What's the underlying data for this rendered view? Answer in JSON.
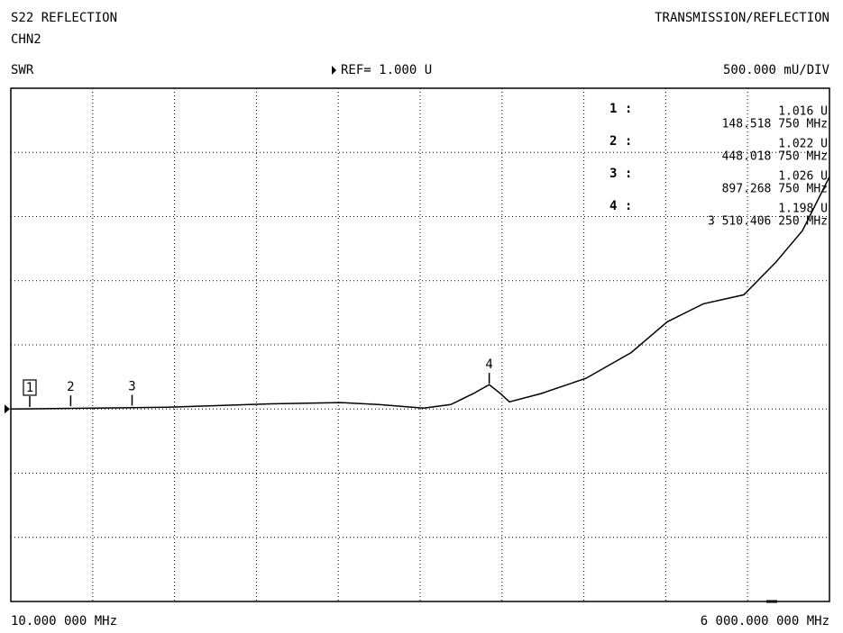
{
  "chart_data": {
    "type": "line",
    "title": "S22 REFLECTION",
    "channel": "CHN2",
    "mode": "TRANSMISSION/REFLECTION",
    "format": "SWR",
    "reference": {
      "value": 1,
      "label": "REF=  1.000 U"
    },
    "scale_label": "500.000 mU/DIV",
    "color": "#000000",
    "grid": true,
    "x": [
      10,
      1158,
      1910,
      2418,
      2700,
      3031,
      3229,
      3394,
      3510,
      3592,
      3658,
      3889,
      4219,
      4549,
      4813,
      5077,
      5373,
      5604,
      5802,
      6000
    ],
    "values": [
      1.0,
      1.014,
      1.04,
      1.05,
      1.035,
      1.007,
      1.035,
      1.12,
      1.19,
      1.12,
      1.056,
      1.12,
      1.24,
      1.44,
      1.68,
      1.82,
      1.89,
      2.14,
      2.39,
      2.81
    ],
    "xlim": [
      10,
      6000
    ],
    "xticks": [
      {
        "value": 10,
        "label": "10.000 000 MHz"
      },
      609,
      1208,
      1807,
      2406,
      3005,
      3604,
      4203,
      4802,
      5401,
      {
        "value": 6000,
        "label": "6 000.000 000 MHz"
      }
    ],
    "ylim": [
      -0.5,
      3.5
    ],
    "yticks": [
      -0.5,
      0,
      0.5,
      1,
      1.5,
      2,
      2.5,
      3,
      3.5
    ],
    "markers": [
      {
        "label": "1",
        "index_label": "1 :",
        "x": 148.51875,
        "y": 1.016,
        "value_label": "1.016 U",
        "x_label": "148.518 750 MHz"
      },
      {
        "label": "2",
        "index_label": "2 :",
        "x": 448.01875,
        "y": 1.022,
        "value_label": "1.022 U",
        "x_label": "448.018 750 MHz"
      },
      {
        "label": "3",
        "index_label": "3 :",
        "x": 897.26875,
        "y": 1.026,
        "value_label": "1.026 U",
        "x_label": "897.268 750 MHz"
      },
      {
        "label": "4",
        "index_label": "4 :",
        "x": 3510.40625,
        "y": 1.198,
        "value_label": "1.198 U",
        "x_label": "3 510.406 250 MHz"
      }
    ]
  }
}
